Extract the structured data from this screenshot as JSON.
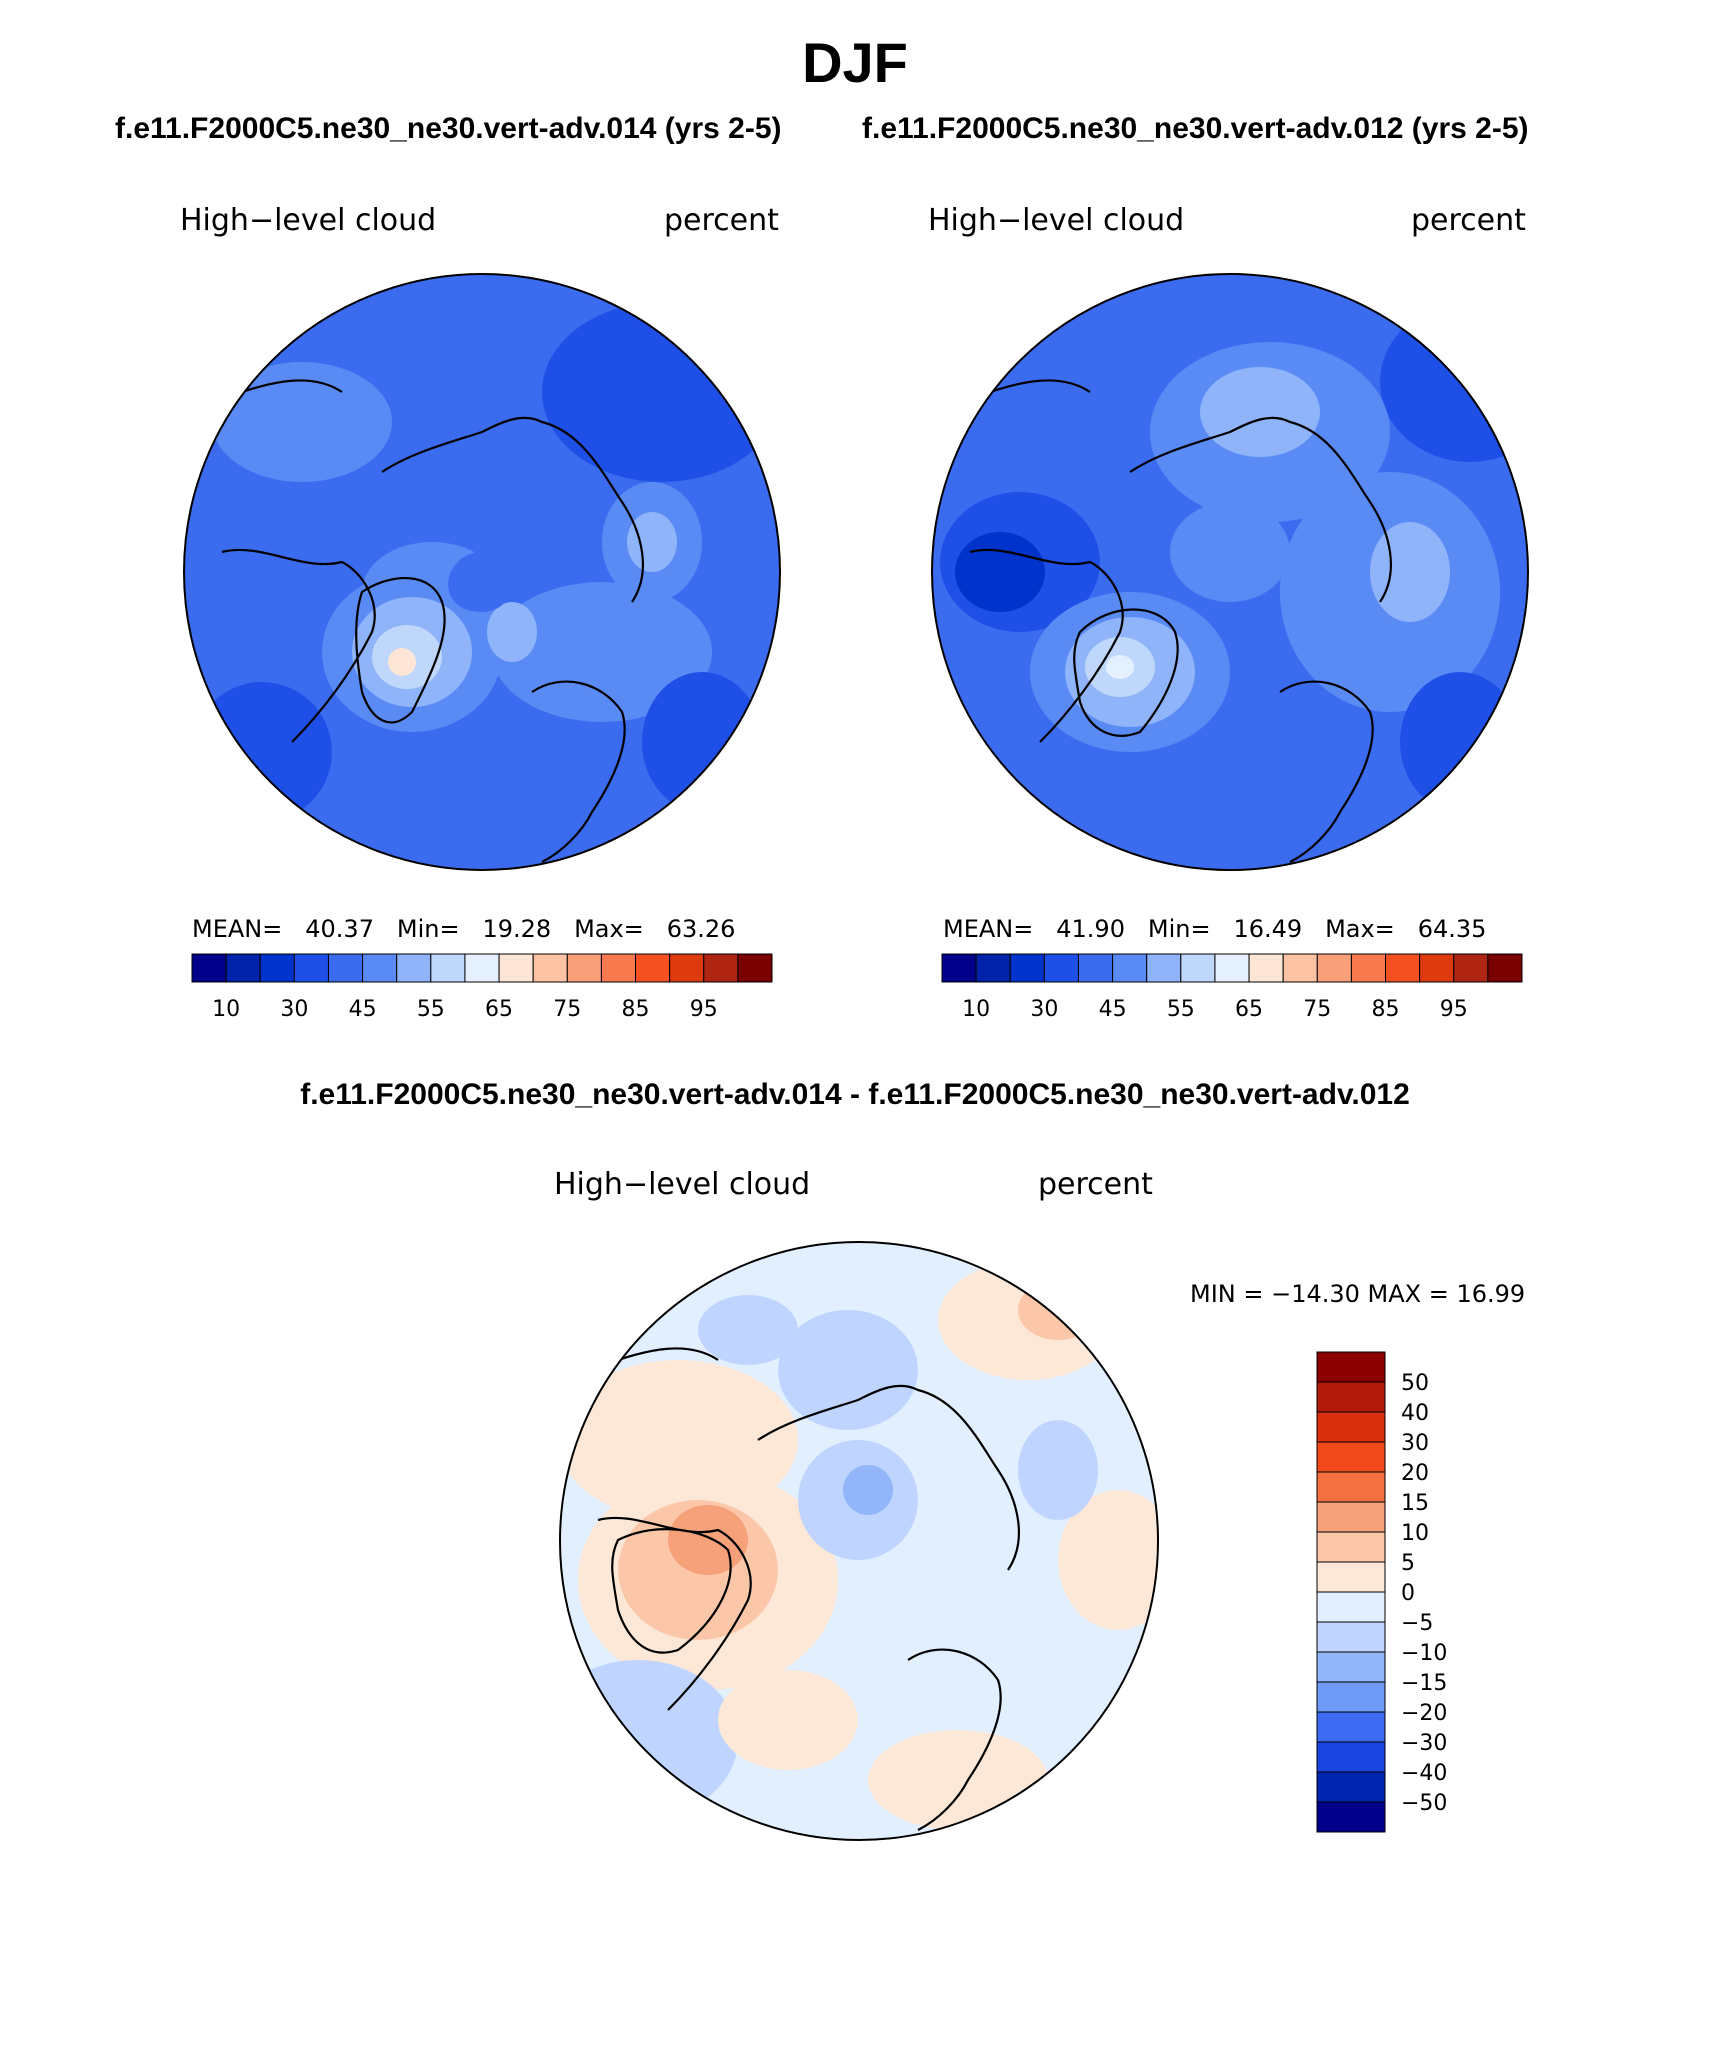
{
  "page": {
    "title": "DJF",
    "case_titles": [
      "f.e11.F2000C5.ne30_ne30.vert-adv.014 (yrs 2-5)",
      "f.e11.F2000C5.ne30_ne30.vert-adv.012 (yrs 2-5)"
    ],
    "diff_title": "f.e11.F2000C5.ne30_ne30.vert-adv.014 - f.e11.F2000C5.ne30_ne30.vert-adv.012"
  },
  "panels": [
    {
      "id": "left",
      "variable": "High−level cloud",
      "units": "percent",
      "stats": {
        "mean_label": "MEAN=",
        "mean": "40.37",
        "min_label": "Min=",
        "min": "19.28",
        "max_label": "Max=",
        "max": "63.26"
      },
      "colorbar": {
        "colors": [
          "#00008b",
          "#0022aa",
          "#0033cc",
          "#1e4fe6",
          "#3b6cf0",
          "#5a8bf5",
          "#8fb4fa",
          "#c0d7fc",
          "#e4f0fd",
          "#fde6d6",
          "#fbc2a3",
          "#f9a07a",
          "#f97a4e",
          "#f45022",
          "#dd3a10",
          "#b02412",
          "#7a0000"
        ],
        "labels": [
          "10",
          "30",
          "45",
          "55",
          "65",
          "75",
          "85",
          "95"
        ]
      }
    },
    {
      "id": "right",
      "variable": "High−level cloud",
      "units": "percent",
      "stats": {
        "mean_label": "MEAN=",
        "mean": "41.90",
        "min_label": "Min=",
        "min": "16.49",
        "max_label": "Max=",
        "max": "64.35"
      },
      "colorbar": {
        "colors": [
          "#00008b",
          "#0022aa",
          "#0033cc",
          "#1e4fe6",
          "#3b6cf0",
          "#5a8bf5",
          "#8fb4fa",
          "#c0d7fc",
          "#e4f0fd",
          "#fde6d6",
          "#fbc2a3",
          "#f9a07a",
          "#f97a4e",
          "#f45022",
          "#dd3a10",
          "#b02412",
          "#7a0000"
        ],
        "labels": [
          "10",
          "30",
          "45",
          "55",
          "65",
          "75",
          "85",
          "95"
        ]
      }
    }
  ],
  "diff_panel": {
    "variable": "High−level cloud",
    "units": "percent",
    "minmax": "MIN = −14.30 MAX =   16.99",
    "colorbar": {
      "colors": [
        "#8b0000",
        "#b21a0a",
        "#d93010",
        "#f04a1a",
        "#f47040",
        "#f7a17a",
        "#fbc7a8",
        "#fde8d8",
        "#e2efff",
        "#bfd5ff",
        "#93b6fa",
        "#6f9bf6",
        "#3d6cf2",
        "#1a44e0",
        "#0026b0",
        "#00008b"
      ],
      "labels": [
        "50",
        "40",
        "30",
        "20",
        "15",
        "10",
        "5",
        "0",
        "−5",
        "−10",
        "−15",
        "−20",
        "−30",
        "−40",
        "−50"
      ]
    }
  },
  "colors": {
    "ocean_mean": "#3d6cf0",
    "land_outline": "#000000"
  }
}
